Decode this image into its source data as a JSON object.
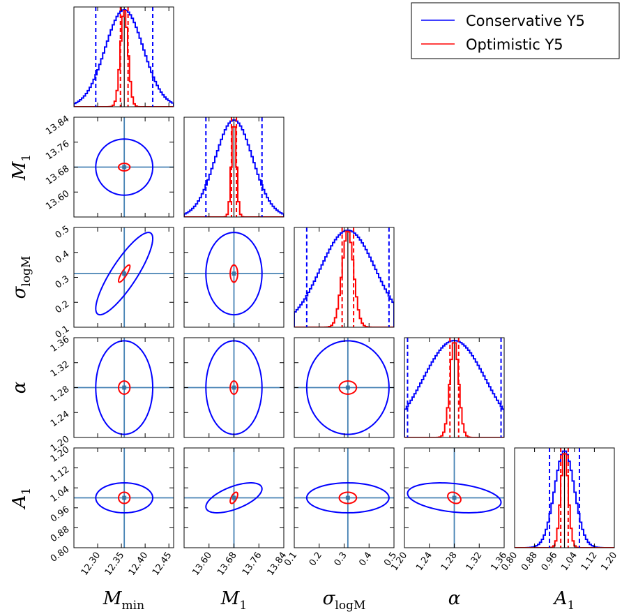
{
  "chart_data": {
    "type": "corner",
    "parameters": [
      {
        "key": "Mmin",
        "symbol": "M",
        "subscript": "min",
        "range": [
          12.25,
          12.46
        ],
        "ticks": [
          "12.30",
          "12.35",
          "12.40",
          "12.45"
        ],
        "center": 12.356,
        "sigma_conservative": 0.04,
        "sigma_optimistic": 0.008
      },
      {
        "key": "M1",
        "symbol": "M",
        "subscript": "1",
        "range": [
          13.52,
          13.84
        ],
        "ticks": [
          "13.60",
          "13.68",
          "13.76",
          "13.84"
        ],
        "center": 13.68,
        "sigma_conservative": 0.06,
        "sigma_optimistic": 0.008
      },
      {
        "key": "sigma_logM",
        "symbol": "σ",
        "subscript": "logM",
        "range": [
          0.1,
          0.5
        ],
        "ticks": [
          "0.1",
          "0.2",
          "0.3",
          "0.4",
          "0.5"
        ],
        "center": 0.315,
        "sigma_conservative": 0.11,
        "sigma_optimistic": 0.023
      },
      {
        "key": "alpha",
        "symbol": "α",
        "subscript": "",
        "range": [
          1.2,
          1.36
        ],
        "ticks": [
          "1.20",
          "1.24",
          "1.28",
          "1.32",
          "1.36"
        ],
        "center": 1.28,
        "sigma_conservative": 0.05,
        "sigma_optimistic": 0.007
      },
      {
        "key": "A1",
        "symbol": "A",
        "subscript": "1",
        "range": [
          0.8,
          1.2
        ],
        "ticks": [
          "0.80",
          "0.88",
          "0.96",
          "1.04",
          "1.12",
          "1.20"
        ],
        "center": 1.0,
        "sigma_conservative": 0.04,
        "sigma_optimistic": 0.015
      }
    ],
    "correlations_conservative": [
      {
        "i": 2,
        "j": 0,
        "rho": 0.85
      },
      {
        "i": 4,
        "j": 1,
        "rho": 0.6
      },
      {
        "i": 4,
        "j": 3,
        "rho": -0.3
      }
    ],
    "series": [
      {
        "name": "Conservative Y5",
        "color": "#0000ff"
      },
      {
        "name": "Optimistic Y5",
        "color": "#ff0000"
      }
    ],
    "truth_line_color": "#4682b4",
    "legend_position": "top-right"
  }
}
